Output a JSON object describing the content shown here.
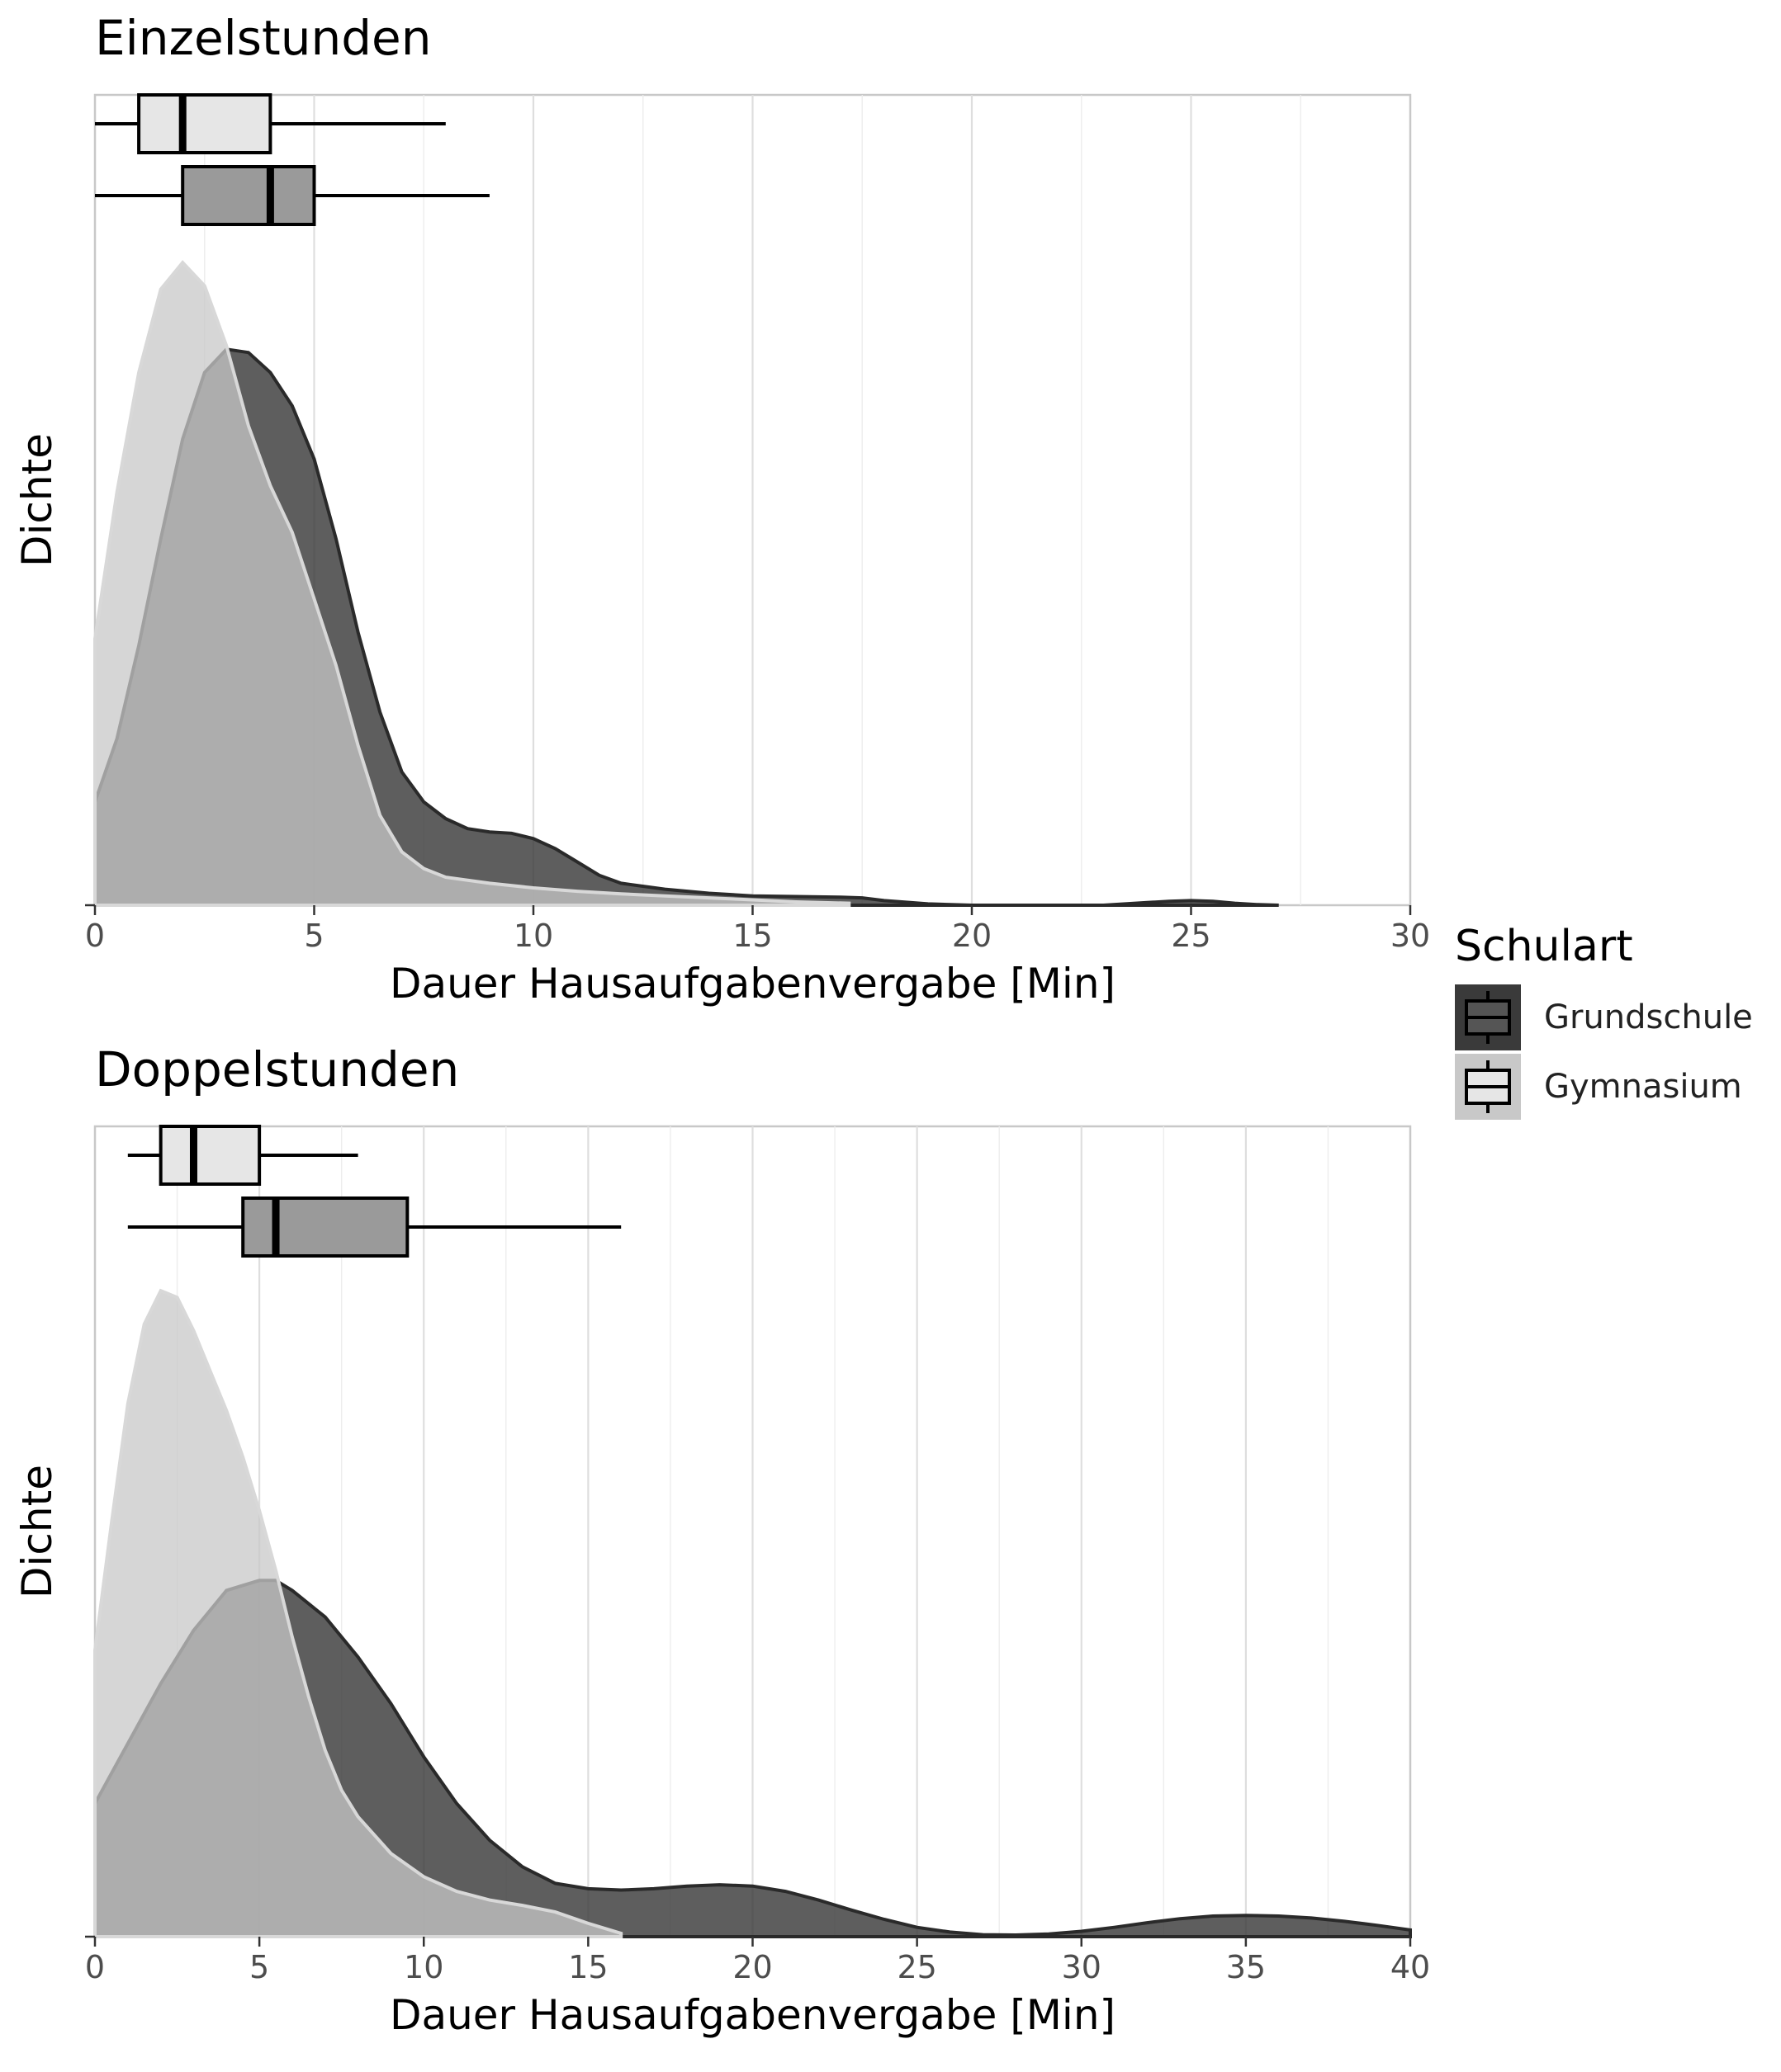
{
  "chart_data": [
    {
      "type": "density",
      "panel": "top",
      "title": "Einzelstunden",
      "xlabel": "Dauer Hausaufgabenvergabe [Min]",
      "ylabel": "Dichte",
      "xlim": [
        0,
        30
      ],
      "xticks": [
        0,
        5,
        10,
        15,
        20,
        25,
        30
      ],
      "grid": "vertical",
      "series": [
        {
          "name": "Grundschule",
          "fill": "#3a3a3a",
          "density": {
            "x": [
              0,
              0.5,
              1,
              1.5,
              2,
              2.5,
              3,
              3.5,
              4,
              4.5,
              5,
              5.5,
              6,
              6.5,
              7,
              7.5,
              8,
              8.5,
              9,
              9.5,
              10,
              10.5,
              11,
              11.5,
              12,
              13,
              14,
              15,
              16,
              17,
              17.5,
              18,
              19,
              20,
              21,
              22,
              23,
              24,
              24.5,
              25,
              25.5,
              26,
              26.5,
              27
            ],
            "y": [
              0.155,
              0.25,
              0.39,
              0.55,
              0.7,
              0.8,
              0.835,
              0.83,
              0.8,
              0.75,
              0.67,
              0.55,
              0.41,
              0.29,
              0.2,
              0.155,
              0.13,
              0.115,
              0.11,
              0.108,
              0.1,
              0.085,
              0.065,
              0.045,
              0.033,
              0.024,
              0.018,
              0.014,
              0.013,
              0.012,
              0.011,
              0.007,
              0.002,
              0.0,
              0.0,
              0.0,
              0.0,
              0.004,
              0.006,
              0.007,
              0.006,
              0.003,
              0.001,
              0.0
            ]
          },
          "boxplot": {
            "min": 0,
            "q1": 2,
            "median": 4,
            "q3": 5,
            "max": 9
          }
        },
        {
          "name": "Gymnasium",
          "fill": "#c8c8c8",
          "density": {
            "x": [
              0,
              0.5,
              1,
              1.5,
              2,
              2.5,
              3,
              3.5,
              4,
              4.5,
              5,
              5.5,
              6,
              6.5,
              7,
              7.5,
              8,
              9,
              10,
              11,
              12,
              13,
              14,
              15,
              16,
              17.2
            ],
            "y": [
              0.4,
              0.62,
              0.8,
              0.925,
              0.965,
              0.93,
              0.84,
              0.72,
              0.63,
              0.56,
              0.46,
              0.36,
              0.24,
              0.135,
              0.08,
              0.055,
              0.042,
              0.033,
              0.026,
              0.021,
              0.017,
              0.014,
              0.011,
              0.008,
              0.005,
              0.003
            ]
          },
          "boxplot": {
            "min": 0,
            "q1": 1,
            "median": 2,
            "q3": 4,
            "max": 8
          }
        }
      ]
    },
    {
      "type": "density",
      "panel": "bottom",
      "title": "Doppelstunden",
      "xlabel": "Dauer Hausaufgabenvergabe [Min]",
      "ylabel": "Dichte",
      "xlim": [
        0,
        40
      ],
      "xticks": [
        0,
        5,
        10,
        15,
        20,
        25,
        30,
        35,
        40
      ],
      "grid": "vertical",
      "series": [
        {
          "name": "Grundschule",
          "fill": "#3a3a3a",
          "density": {
            "x": [
              0,
              1,
              2,
              3,
              4,
              5,
              5.5,
              6,
              7,
              8,
              9,
              10,
              11,
              12,
              13,
              14,
              15,
              16,
              17,
              18,
              19,
              20,
              21,
              22,
              23,
              24,
              25,
              26,
              27,
              28,
              29,
              30,
              31,
              32,
              33,
              34,
              35,
              36,
              37,
              38,
              39,
              40
            ],
            "y": [
              0.2,
              0.29,
              0.38,
              0.46,
              0.52,
              0.535,
              0.535,
              0.52,
              0.48,
              0.42,
              0.35,
              0.27,
              0.2,
              0.145,
              0.105,
              0.08,
              0.072,
              0.07,
              0.072,
              0.076,
              0.078,
              0.076,
              0.068,
              0.055,
              0.04,
              0.026,
              0.014,
              0.007,
              0.003,
              0.0025,
              0.004,
              0.008,
              0.014,
              0.021,
              0.027,
              0.031,
              0.032,
              0.031,
              0.028,
              0.023,
              0.017,
              0.01
            ]
          },
          "boxplot": {
            "min": 1,
            "q1": 4.5,
            "median": 5.5,
            "q3": 9.5,
            "max": 16
          }
        },
        {
          "name": "Gymnasium",
          "fill": "#c8c8c8",
          "density": {
            "x": [
              0,
              0.5,
              1,
              1.5,
              2,
              2.5,
              3,
              3.5,
              4,
              4.5,
              5,
              5.5,
              6,
              6.5,
              7,
              7.5,
              8,
              9,
              10,
              11,
              12,
              13,
              14,
              15,
              16
            ],
            "y": [
              0.43,
              0.62,
              0.8,
              0.92,
              0.97,
              0.96,
              0.91,
              0.85,
              0.79,
              0.72,
              0.64,
              0.55,
              0.45,
              0.36,
              0.28,
              0.22,
              0.18,
              0.125,
              0.09,
              0.068,
              0.055,
              0.047,
              0.037,
              0.02,
              0.005
            ]
          },
          "boxplot": {
            "min": 1,
            "q1": 2,
            "median": 3,
            "q3": 5,
            "max": 8
          }
        }
      ]
    }
  ],
  "legend": {
    "title": "Schulart",
    "items": [
      {
        "label": "Grundschule",
        "fill": "#3a3a3a"
      },
      {
        "label": "Gymnasium",
        "fill": "#c8c8c8"
      }
    ]
  }
}
